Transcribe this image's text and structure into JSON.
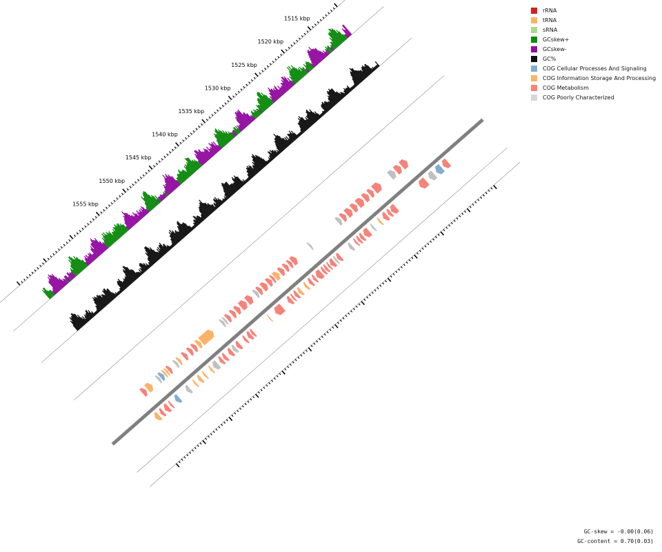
{
  "ticks": {
    "labels": [
      "1515 kbp",
      "1520 kbp",
      "1525 kbp",
      "1530 kbp",
      "1535 kbp",
      "1540 kbp",
      "1545 kbp",
      "1550 kbp",
      "1555 kbp"
    ]
  },
  "legend": [
    {
      "label": "rRNA",
      "color": "#d62020"
    },
    {
      "label": "tRNA",
      "color": "#fbb36a"
    },
    {
      "label": "sRNA",
      "color": "#a8dc8a"
    },
    {
      "label": "GCskew+",
      "color": "#0e8a0e"
    },
    {
      "label": "GCskew-",
      "color": "#930ea0"
    },
    {
      "label": "GC%",
      "color": "#111111"
    },
    {
      "label": "COG Cellular Processes And Signaling",
      "color": "#80aed4"
    },
    {
      "label": "COG Information Storage And Processing",
      "color": "#fbb36a"
    },
    {
      "label": "COG Metabolism",
      "color": "#f5837a"
    },
    {
      "label": "COG Poorly Characterized",
      "color": "#d7d7d7"
    }
  ],
  "stats": {
    "gc_skew": "GC-skew = -0.00(0.06)",
    "gc_content": "GC-content = 0.70(0.03)"
  },
  "colors": {
    "skew_pos": "#0e8a0e",
    "skew_neg": "#930ea0",
    "gc": "#111111",
    "backbone": "#808080",
    "info": "#fbb36a",
    "metabolism": "#f5837a",
    "cellular": "#80aed4",
    "poor": "#c0c0c0",
    "guide": "#8a8a8a"
  },
  "features": {
    "forward": [
      {
        "start": 1517.0,
        "end": 1518.0,
        "cog": "metabolism"
      },
      {
        "start": 1518.2,
        "end": 1519.1,
        "cog": "metabolism"
      },
      {
        "start": 1519.3,
        "end": 1520.2,
        "cog": "poor"
      },
      {
        "start": 1522.0,
        "end": 1523.2,
        "cog": "metabolism"
      },
      {
        "start": 1523.4,
        "end": 1524.1,
        "cog": "metabolism"
      },
      {
        "start": 1524.3,
        "end": 1525.1,
        "cog": "metabolism"
      },
      {
        "start": 1525.3,
        "end": 1526.3,
        "cog": "metabolism"
      },
      {
        "start": 1526.5,
        "end": 1527.3,
        "cog": "metabolism"
      },
      {
        "start": 1527.5,
        "end": 1528.4,
        "cog": "metabolism"
      },
      {
        "start": 1528.6,
        "end": 1529.3,
        "cog": "metabolism"
      },
      {
        "start": 1529.5,
        "end": 1530.1,
        "cog": "poor"
      },
      {
        "start": 1535.1,
        "end": 1535.4,
        "cog": "poor"
      },
      {
        "start": 1537.9,
        "end": 1538.7,
        "cog": "metabolism"
      },
      {
        "start": 1538.8,
        "end": 1539.3,
        "cog": "metabolism"
      },
      {
        "start": 1539.5,
        "end": 1540.1,
        "cog": "metabolism"
      },
      {
        "start": 1540.3,
        "end": 1541.0,
        "cog": "metabolism"
      },
      {
        "start": 1541.2,
        "end": 1542.0,
        "cog": "info"
      },
      {
        "start": 1542.1,
        "end": 1542.5,
        "cog": "metabolism"
      },
      {
        "start": 1542.6,
        "end": 1543.3,
        "cog": "metabolism"
      },
      {
        "start": 1543.5,
        "end": 1544.3,
        "cog": "metabolism"
      },
      {
        "start": 1544.5,
        "end": 1545.1,
        "cog": "metabolism"
      },
      {
        "start": 1545.2,
        "end": 1545.7,
        "cog": "poor"
      },
      {
        "start": 1546.3,
        "end": 1547.2,
        "cog": "metabolism"
      },
      {
        "start": 1547.4,
        "end": 1548.4,
        "cog": "metabolism"
      },
      {
        "start": 1548.6,
        "end": 1549.3,
        "cog": "metabolism"
      },
      {
        "start": 1549.5,
        "end": 1550.1,
        "cog": "metabolism"
      },
      {
        "start": 1550.4,
        "end": 1551.0,
        "cog": "metabolism"
      },
      {
        "start": 1551.2,
        "end": 1551.5,
        "cog": "poor"
      },
      {
        "start": 1551.6,
        "end": 1552.0,
        "cog": "poor"
      },
      {
        "start": 1553.7,
        "end": 1555.9,
        "cog": "info"
      },
      {
        "start": 1556.0,
        "end": 1556.6,
        "cog": "info"
      },
      {
        "start": 1556.8,
        "end": 1557.4,
        "cog": "metabolism"
      },
      {
        "start": 1557.6,
        "end": 1558.2,
        "cog": "metabolism"
      },
      {
        "start": 1558.6,
        "end": 1559.2,
        "cog": "metabolism"
      },
      {
        "start": 1559.8,
        "end": 1560.2,
        "cog": "info"
      },
      {
        "start": 1560.4,
        "end": 1560.8,
        "cog": "poor"
      },
      {
        "start": 1561.6,
        "end": 1562.1,
        "cog": "metabolism"
      },
      {
        "start": 1562.2,
        "end": 1562.5,
        "cog": "info"
      },
      {
        "start": 1562.6,
        "end": 1562.9,
        "cog": "info"
      },
      {
        "start": 1563.0,
        "end": 1563.6,
        "cog": "cellular"
      },
      {
        "start": 1563.7,
        "end": 1564.1,
        "cog": "poor"
      },
      {
        "start": 1565.2,
        "end": 1566.1,
        "cog": "info"
      },
      {
        "start": 1566.3,
        "end": 1567.0,
        "cog": "metabolism"
      }
    ],
    "reverse": [
      {
        "start": 1512.7,
        "end": 1513.6,
        "cog": "metabolism"
      },
      {
        "start": 1513.9,
        "end": 1514.9,
        "cog": "cellular"
      },
      {
        "start": 1515.3,
        "end": 1516.2,
        "cog": "poor"
      },
      {
        "start": 1516.8,
        "end": 1518.0,
        "cog": "metabolism"
      },
      {
        "start": 1522.5,
        "end": 1523.4,
        "cog": "metabolism"
      },
      {
        "start": 1523.5,
        "end": 1524.0,
        "cog": "metabolism"
      },
      {
        "start": 1524.2,
        "end": 1524.9,
        "cog": "metabolism"
      },
      {
        "start": 1525.4,
        "end": 1525.7,
        "cog": "info"
      },
      {
        "start": 1526.7,
        "end": 1527.0,
        "cog": "poor"
      },
      {
        "start": 1527.6,
        "end": 1528.5,
        "cog": "metabolism"
      },
      {
        "start": 1528.7,
        "end": 1529.2,
        "cog": "metabolism"
      },
      {
        "start": 1529.3,
        "end": 1529.7,
        "cog": "metabolism"
      },
      {
        "start": 1529.9,
        "end": 1530.2,
        "cog": "metabolism"
      },
      {
        "start": 1530.8,
        "end": 1531.3,
        "cog": "poor"
      },
      {
        "start": 1533.0,
        "end": 1533.6,
        "cog": "metabolism"
      },
      {
        "start": 1533.7,
        "end": 1534.0,
        "cog": "poor"
      },
      {
        "start": 1534.2,
        "end": 1534.9,
        "cog": "metabolism"
      },
      {
        "start": 1535.0,
        "end": 1535.3,
        "cog": "metabolism"
      },
      {
        "start": 1535.5,
        "end": 1535.9,
        "cog": "metabolism"
      },
      {
        "start": 1536.0,
        "end": 1536.4,
        "cog": "metabolism"
      },
      {
        "start": 1536.6,
        "end": 1537.5,
        "cog": "metabolism"
      },
      {
        "start": 1537.7,
        "end": 1538.1,
        "cog": "metabolism"
      },
      {
        "start": 1538.4,
        "end": 1538.9,
        "cog": "metabolism"
      },
      {
        "start": 1539.3,
        "end": 1539.7,
        "cog": "info"
      },
      {
        "start": 1540.4,
        "end": 1540.9,
        "cog": "info"
      },
      {
        "start": 1541.1,
        "end": 1541.6,
        "cog": "metabolism"
      },
      {
        "start": 1541.8,
        "end": 1542.1,
        "cog": "metabolism"
      },
      {
        "start": 1542.3,
        "end": 1542.9,
        "cog": "metabolism"
      },
      {
        "start": 1544.0,
        "end": 1545.3,
        "cog": "metabolism"
      },
      {
        "start": 1546.3,
        "end": 1546.5,
        "cog": "info"
      },
      {
        "start": 1549.4,
        "end": 1549.8,
        "cog": "metabolism"
      },
      {
        "start": 1549.9,
        "end": 1550.5,
        "cog": "metabolism"
      },
      {
        "start": 1550.8,
        "end": 1551.2,
        "cog": "metabolism"
      },
      {
        "start": 1552.0,
        "end": 1552.6,
        "cog": "metabolism"
      },
      {
        "start": 1552.8,
        "end": 1553.3,
        "cog": "poor"
      },
      {
        "start": 1553.5,
        "end": 1554.1,
        "cog": "metabolism"
      },
      {
        "start": 1554.6,
        "end": 1555.1,
        "cog": "metabolism"
      },
      {
        "start": 1555.3,
        "end": 1555.8,
        "cog": "metabolism"
      },
      {
        "start": 1556.2,
        "end": 1557.0,
        "cog": "poor"
      },
      {
        "start": 1557.3,
        "end": 1557.6,
        "cog": "info"
      },
      {
        "start": 1558.5,
        "end": 1558.8,
        "cog": "info"
      },
      {
        "start": 1559.3,
        "end": 1559.8,
        "cog": "info"
      },
      {
        "start": 1560.3,
        "end": 1560.6,
        "cog": "info"
      },
      {
        "start": 1561.5,
        "end": 1562.1,
        "cog": "poor"
      },
      {
        "start": 1563.5,
        "end": 1564.2,
        "cog": "cellular"
      },
      {
        "start": 1564.9,
        "end": 1565.2,
        "cog": "metabolism"
      },
      {
        "start": 1565.5,
        "end": 1566.2,
        "cog": "metabolism"
      },
      {
        "start": 1566.5,
        "end": 1567.0,
        "cog": "metabolism"
      },
      {
        "start": 1567.3,
        "end": 1568.0,
        "cog": "info"
      }
    ]
  }
}
